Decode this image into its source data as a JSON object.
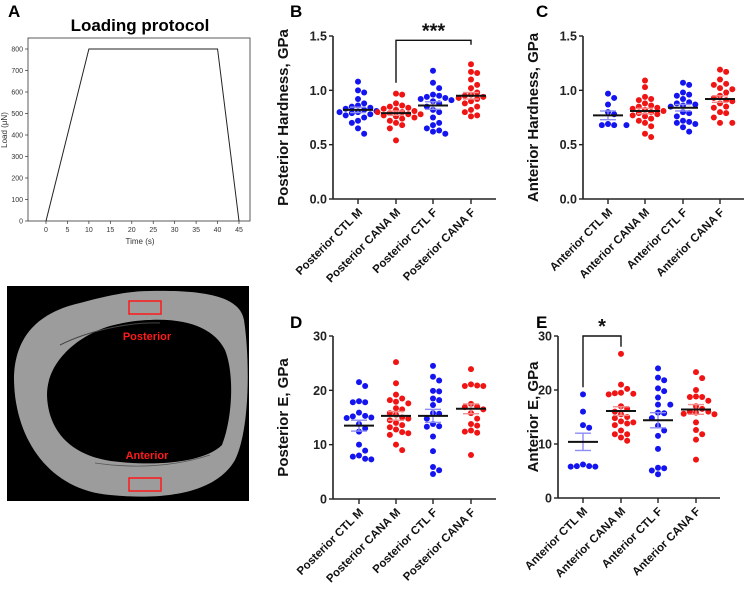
{
  "panel_labels": {
    "a": "A",
    "b": "B",
    "c": "C",
    "d": "D",
    "e": "E"
  },
  "colors": {
    "ctl": "#1414f0",
    "cana": "#f01414",
    "axis": "#222222",
    "bone": "#9c9c9c"
  },
  "image_panel": {
    "posterior_label": "Posterior",
    "anterior_label": "Anterior"
  },
  "chart_data": [
    {
      "id": "A",
      "type": "line",
      "title": "Loading protocol",
      "xlabel": "Time (s)",
      "ylabel": "Load (μN)",
      "x": [
        0,
        10,
        40,
        45
      ],
      "y": [
        0,
        800,
        800,
        0
      ],
      "xlim": [
        -3,
        45.5
      ],
      "ylim": [
        0,
        850
      ],
      "xticks": [
        "0",
        "5",
        "10",
        "15",
        "20",
        "25",
        "30",
        "35",
        "40",
        "45"
      ],
      "yticks": [
        "0",
        "100",
        "200",
        "300",
        "400",
        "500",
        "600",
        "700",
        "800"
      ],
      "grid": false
    },
    {
      "id": "B",
      "type": "scatter",
      "ylabel": "Posterior Hardness, GPa",
      "ylim": [
        0,
        1.5
      ],
      "yticks": [
        "0.0",
        "0.5",
        "1.0",
        "1.5"
      ],
      "categories": [
        "Posterior CTL M",
        "Posterior CANA M",
        "Posterior CTL F",
        "Posterior  CANA F"
      ],
      "series": [
        {
          "name": "Posterior CTL M",
          "group": "ctl",
          "mean": 0.82,
          "sem": 0.025,
          "values": [
            1.08,
            1.0,
            0.98,
            0.92,
            0.88,
            0.86,
            0.85,
            0.84,
            0.83,
            0.82,
            0.81,
            0.8,
            0.8,
            0.79,
            0.78,
            0.77,
            0.75,
            0.72,
            0.7,
            0.65,
            0.6
          ]
        },
        {
          "name": "Posterior CANA M",
          "group": "cana",
          "mean": 0.79,
          "sem": 0.02,
          "values": [
            0.97,
            0.96,
            0.88,
            0.86,
            0.85,
            0.84,
            0.83,
            0.82,
            0.81,
            0.8,
            0.8,
            0.79,
            0.78,
            0.78,
            0.77,
            0.76,
            0.75,
            0.74,
            0.72,
            0.7,
            0.68,
            0.65,
            0.54
          ]
        },
        {
          "name": "Posterior CTL F",
          "group": "ctl",
          "mean": 0.86,
          "sem": 0.035,
          "values": [
            1.18,
            1.07,
            1.02,
            0.96,
            0.95,
            0.94,
            0.93,
            0.92,
            0.91,
            0.9,
            0.88,
            0.85,
            0.82,
            0.8,
            0.75,
            0.7,
            0.68,
            0.65,
            0.63,
            0.62,
            0.6
          ]
        },
        {
          "name": "Posterior  CANA F",
          "group": "cana",
          "mean": 0.95,
          "sem": 0.03,
          "values": [
            1.24,
            1.17,
            1.16,
            1.1,
            1.05,
            1.02,
            0.98,
            0.96,
            0.95,
            0.94,
            0.93,
            0.92,
            0.9,
            0.88,
            0.85,
            0.82,
            0.8,
            0.77,
            0.76
          ]
        }
      ],
      "significance": [
        {
          "from": 1,
          "to": 3,
          "label": "***",
          "level": 1.46,
          "left_leg": 1.07,
          "right_leg": 1.42
        }
      ]
    },
    {
      "id": "C",
      "type": "scatter",
      "ylabel": "Anterior Hardness, GPa",
      "ylim": [
        0,
        1.5
      ],
      "yticks": [
        "0.0",
        "0.5",
        "1.0",
        "1.5"
      ],
      "categories": [
        "Anterior CTL M",
        "Anterior CANA M",
        "Anterior CTL F",
        "Anterior  CANA F"
      ],
      "series": [
        {
          "name": "Anterior CTL M",
          "group": "ctl",
          "mean": 0.77,
          "sem": 0.04,
          "values": [
            0.97,
            0.93,
            0.87,
            0.8,
            0.78,
            0.69,
            0.68,
            0.68,
            0.68
          ]
        },
        {
          "name": "Anterior CANA M",
          "group": "cana",
          "mean": 0.81,
          "sem": 0.025,
          "values": [
            1.09,
            1.03,
            0.94,
            0.92,
            0.91,
            0.88,
            0.86,
            0.85,
            0.84,
            0.83,
            0.82,
            0.81,
            0.8,
            0.79,
            0.78,
            0.77,
            0.76,
            0.74,
            0.72,
            0.7,
            0.67,
            0.6,
            0.57
          ]
        },
        {
          "name": "Anterior CTL F",
          "group": "ctl",
          "mean": 0.84,
          "sem": 0.03,
          "values": [
            1.07,
            1.05,
            0.98,
            0.96,
            0.95,
            0.92,
            0.89,
            0.88,
            0.87,
            0.86,
            0.85,
            0.8,
            0.79,
            0.76,
            0.72,
            0.71,
            0.7,
            0.69,
            0.66,
            0.62
          ]
        },
        {
          "name": "Anterior  CANA F",
          "group": "cana",
          "mean": 0.92,
          "sem": 0.03,
          "values": [
            1.19,
            1.17,
            1.1,
            1.06,
            1.05,
            1.02,
            1.01,
            0.98,
            0.95,
            0.93,
            0.91,
            0.9,
            0.88,
            0.85,
            0.84,
            0.8,
            0.79,
            0.75,
            0.7,
            0.7
          ]
        }
      ],
      "significance": []
    },
    {
      "id": "D",
      "type": "scatter",
      "ylabel": "Posterior E, GPa",
      "ylim": [
        0,
        30
      ],
      "yticks": [
        "0",
        "10",
        "20",
        "30"
      ],
      "categories": [
        "Posterior CTL M",
        "Posterior CANA M",
        "Posterior CTL F",
        "Posterior  CANA F"
      ],
      "series": [
        {
          "name": "Posterior CTL M",
          "group": "ctl",
          "mean": 13.5,
          "sem": 1.0,
          "values": [
            21.5,
            20.8,
            18,
            17.8,
            17.8,
            15.9,
            15.3,
            15.2,
            15,
            14.9,
            13.8,
            13,
            12.4,
            10,
            8.9,
            8,
            7.8,
            7.4,
            7.3
          ]
        },
        {
          "name": "Posterior CANA M",
          "group": "cana",
          "mean": 15.3,
          "sem": 0.8,
          "values": [
            25.2,
            21.3,
            19.2,
            18.5,
            18.2,
            17.9,
            17.6,
            16.7,
            16.5,
            15.8,
            15.5,
            15,
            14.8,
            14.5,
            14,
            13.6,
            13.2,
            12.8,
            12.3,
            12.1,
            11.8,
            10,
            9
          ]
        },
        {
          "name": "Posterior CTL F",
          "group": "ctl",
          "mean": 15.3,
          "sem": 1.2,
          "values": [
            24.5,
            22.5,
            21.8,
            19.9,
            19.8,
            18.5,
            18.2,
            17.3,
            15.8,
            15.7,
            14.8,
            13.8,
            13.4,
            13.3,
            11.5,
            8.8,
            5.9,
            5.3,
            4.6
          ]
        },
        {
          "name": "Posterior  CANA F",
          "group": "cana",
          "mean": 16.6,
          "sem": 0.9,
          "values": [
            23.9,
            21.1,
            20.9,
            20.8,
            20.8,
            17.5,
            17,
            16.9,
            16.5,
            15.8,
            14.8,
            13.8,
            13.5,
            12.6,
            12.4,
            12.2,
            8.1
          ]
        }
      ],
      "significance": []
    },
    {
      "id": "E",
      "type": "scatter",
      "ylabel": "Anterior E, GPa",
      "ylim": [
        0,
        30
      ],
      "yticks": [
        "0",
        "10",
        "20",
        "30"
      ],
      "categories": [
        "Anterior CTL M",
        "Anterior CANA M",
        "Anterior CTL F",
        "Anterior  CANA F"
      ],
      "series": [
        {
          "name": "Anterior CTL M",
          "group": "ctl",
          "mean": 10.4,
          "sem": 1.6,
          "values": [
            19.2,
            16,
            13.5,
            13,
            6.2,
            5.9,
            5.9,
            5.8,
            5.8
          ]
        },
        {
          "name": "Anterior CANA M",
          "group": "cana",
          "mean": 16.1,
          "sem": 0.8,
          "values": [
            26.7,
            21,
            20.2,
            19.5,
            19.4,
            19.3,
            19.2,
            17,
            16.5,
            16,
            15.5,
            15,
            14.8,
            14.2,
            14,
            13.8,
            13.5,
            12.5,
            11.8,
            11.8,
            11.2,
            10.6
          ]
        },
        {
          "name": "Anterior CTL F",
          "group": "ctl",
          "mean": 14.4,
          "sem": 1.4,
          "values": [
            24,
            22.3,
            21.8,
            20.3,
            19.8,
            18.6,
            17.3,
            17.3,
            15.8,
            15.7,
            14.8,
            13.4,
            12.5,
            11.5,
            9.1,
            5.6,
            5.5,
            5.1,
            4.4
          ]
        },
        {
          "name": "Anterior  CANA F",
          "group": "cana",
          "mean": 16.4,
          "sem": 0.9,
          "values": [
            23.3,
            22.2,
            20,
            18.8,
            18.7,
            18.7,
            18,
            17,
            16.5,
            16,
            16,
            15.8,
            15.6,
            15.5,
            14,
            12.6,
            11.8,
            10.8,
            7.1
          ]
        }
      ],
      "significance": [
        {
          "from": 0,
          "to": 1,
          "label": "*",
          "level": 30,
          "left_leg": 20.5,
          "right_leg": 28
        }
      ]
    }
  ]
}
